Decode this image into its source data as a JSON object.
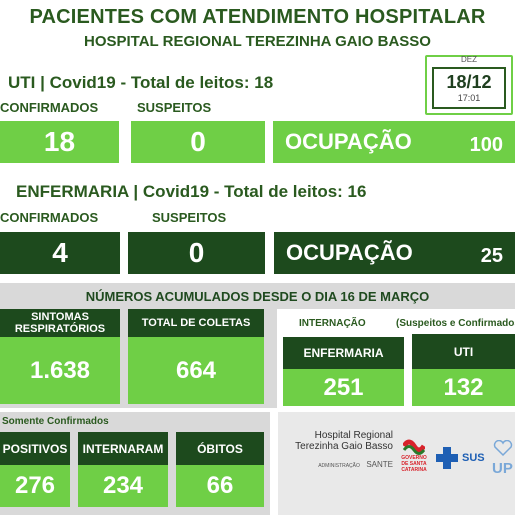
{
  "header": {
    "title": "PACIENTES COM ATENDIMENTO HOSPITALAR",
    "subtitle": "HOSPITAL REGIONAL TEREZINHA GAIO BASSO"
  },
  "date": {
    "month": "DEZ",
    "day": "18/12",
    "time": "17:01"
  },
  "uti": {
    "heading": "UTI | Covid19 - Total de leitos: 18",
    "confirmed_label": "CONFIRMADOS",
    "suspected_label": "SUSPEITOS",
    "confirmed_value": "18",
    "suspected_value": "0",
    "occupancy_label": "OCUPAÇÃO",
    "occupancy_value": "100"
  },
  "enfermaria": {
    "heading": "ENFERMARIA | Covid19 - Total de leitos: 16",
    "confirmed_label": "CONFIRMADOS",
    "suspected_label": "SUSPEITOS",
    "confirmed_value": "4",
    "suspected_value": "0",
    "occupancy_label": "OCUPAÇÃO",
    "occupancy_value": "25"
  },
  "accumulated": {
    "title": "NÚMEROS ACUMULADOS DESDE O DIA 16 DE MARÇO",
    "sintomas_label": "SINTOMAS RESPIRATÓRIOS",
    "sintomas_value": "1.638",
    "coletas_label": "TOTAL DE COLETAS",
    "coletas_value": "664",
    "internacao_label": "INTERNAÇÃO",
    "internacao_note": "(Suspeitos e Confirmados)",
    "enfermaria_label": "ENFERMARIA",
    "enfermaria_value": "251",
    "uti_label": "UTI",
    "uti_value": "132",
    "confirmed_only_label": "Somente Confirmados",
    "positivos_label": "POSITIVOS",
    "positivos_value": "276",
    "internaram_label": "INTERNARAM",
    "internaram_value": "234",
    "obitos_label": "ÓBITOS",
    "obitos_value": "66"
  },
  "logos": {
    "hospital_line1": "Hospital Regional",
    "hospital_line2": "Terezinha Gaio Basso",
    "admin_label": "ADMINISTRAÇÃO",
    "sante_label": "SANTE",
    "gov_line1": "GOVERNO",
    "gov_line2": "DE SANTA",
    "gov_line3": "CATARINA",
    "sus_label": "SUS",
    "upa_label": "UP"
  },
  "colors": {
    "light_green": "#6fcf46",
    "dark_green": "#1d4a1d",
    "text_green": "#2a5a1f"
  }
}
